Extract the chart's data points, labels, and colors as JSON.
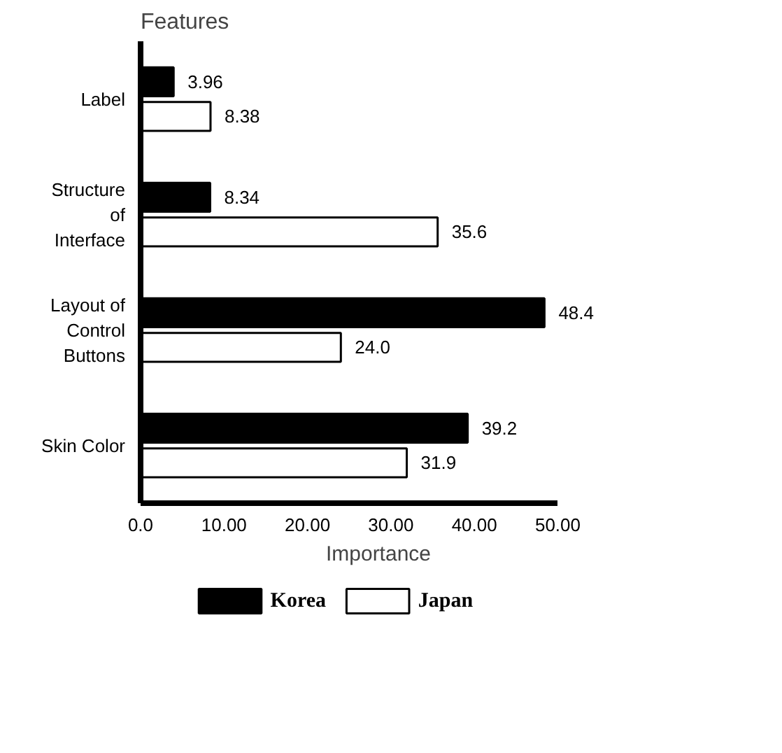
{
  "chart_data": {
    "type": "bar",
    "orientation": "horizontal",
    "ylabel": "Features",
    "xlabel": "Importance",
    "categories": [
      "Label",
      "Structure\nof\nInterface",
      "Layout of\nControl\nButtons",
      "Skin Color"
    ],
    "series": [
      {
        "name": "Korea",
        "color": "#000000",
        "values": [
          3.96,
          8.34,
          48.4,
          39.2
        ],
        "value_labels": [
          "3.96",
          "8.34",
          "48.4",
          "39.2"
        ]
      },
      {
        "name": "Japan",
        "color": "#ffffff",
        "values": [
          8.38,
          35.6,
          24.0,
          31.9
        ],
        "value_labels": [
          "8.38",
          "35.6",
          "24.0",
          "31.9"
        ]
      }
    ],
    "xlim": [
      0,
      50
    ],
    "xticks": [
      {
        "value": 0,
        "label": "0.0"
      },
      {
        "value": 10,
        "label": "10.00"
      },
      {
        "value": 20,
        "label": "20.00"
      },
      {
        "value": 30,
        "label": "30.00"
      },
      {
        "value": 40,
        "label": "40.00"
      },
      {
        "value": 50,
        "label": "50.00"
      }
    ],
    "grid": false,
    "legend": "bottom"
  }
}
